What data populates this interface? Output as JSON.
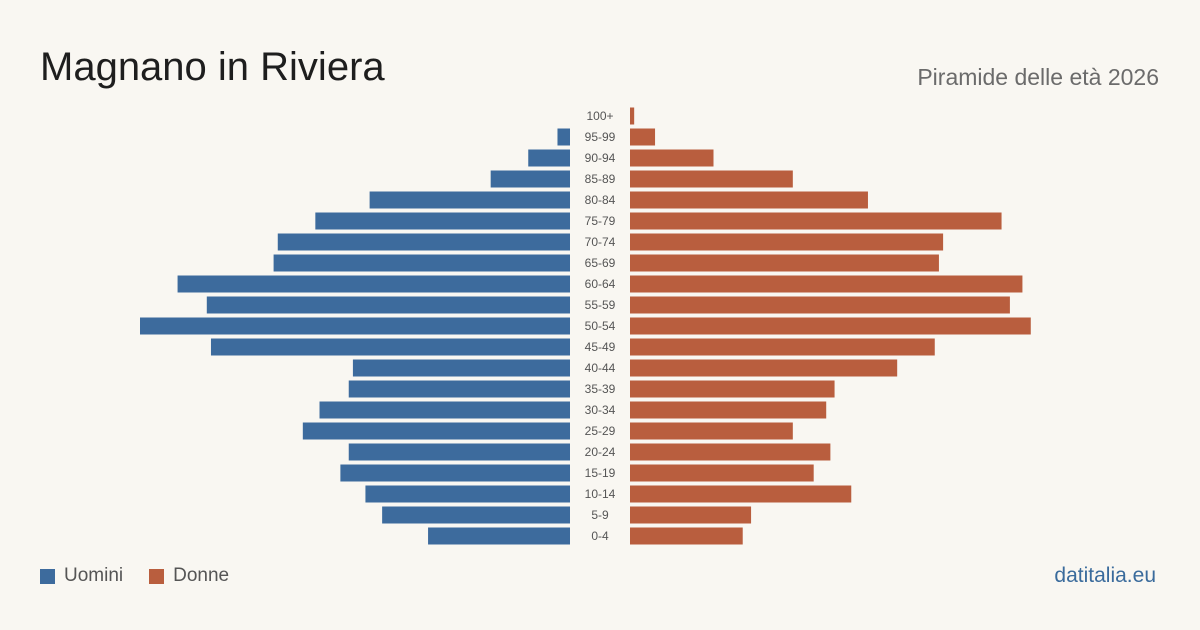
{
  "header": {
    "title": "Magnano in Riviera",
    "subtitle": "Piramide delle età 2026"
  },
  "legend": {
    "men_label": "Uomini",
    "women_label": "Donne"
  },
  "footer": {
    "source": "datitalia.eu"
  },
  "colors": {
    "men": "#3d6b9d",
    "women": "#b95e3e",
    "background": "#f9f7f2"
  },
  "chart_data": {
    "type": "bar",
    "orientation": "horizontal-pyramid",
    "title": "Magnano in Riviera",
    "subtitle": "Piramide delle età 2026",
    "categories": [
      "100+",
      "95-99",
      "90-94",
      "85-89",
      "80-84",
      "75-79",
      "70-74",
      "65-69",
      "60-64",
      "55-59",
      "50-54",
      "45-49",
      "40-44",
      "35-39",
      "30-34",
      "25-29",
      "20-24",
      "15-19",
      "10-14",
      "5-9",
      "0-4"
    ],
    "series": [
      {
        "name": "Uomini",
        "values": [
          0,
          3,
          10,
          19,
          48,
          61,
          70,
          71,
          94,
          87,
          103,
          86,
          52,
          53,
          60,
          64,
          53,
          55,
          49,
          45,
          34
        ]
      },
      {
        "name": "Donne",
        "values": [
          1,
          6,
          20,
          39,
          57,
          89,
          75,
          74,
          94,
          91,
          96,
          73,
          64,
          49,
          47,
          39,
          48,
          44,
          53,
          29,
          27
        ]
      }
    ],
    "legend": "bottom-left",
    "grid": false
  }
}
